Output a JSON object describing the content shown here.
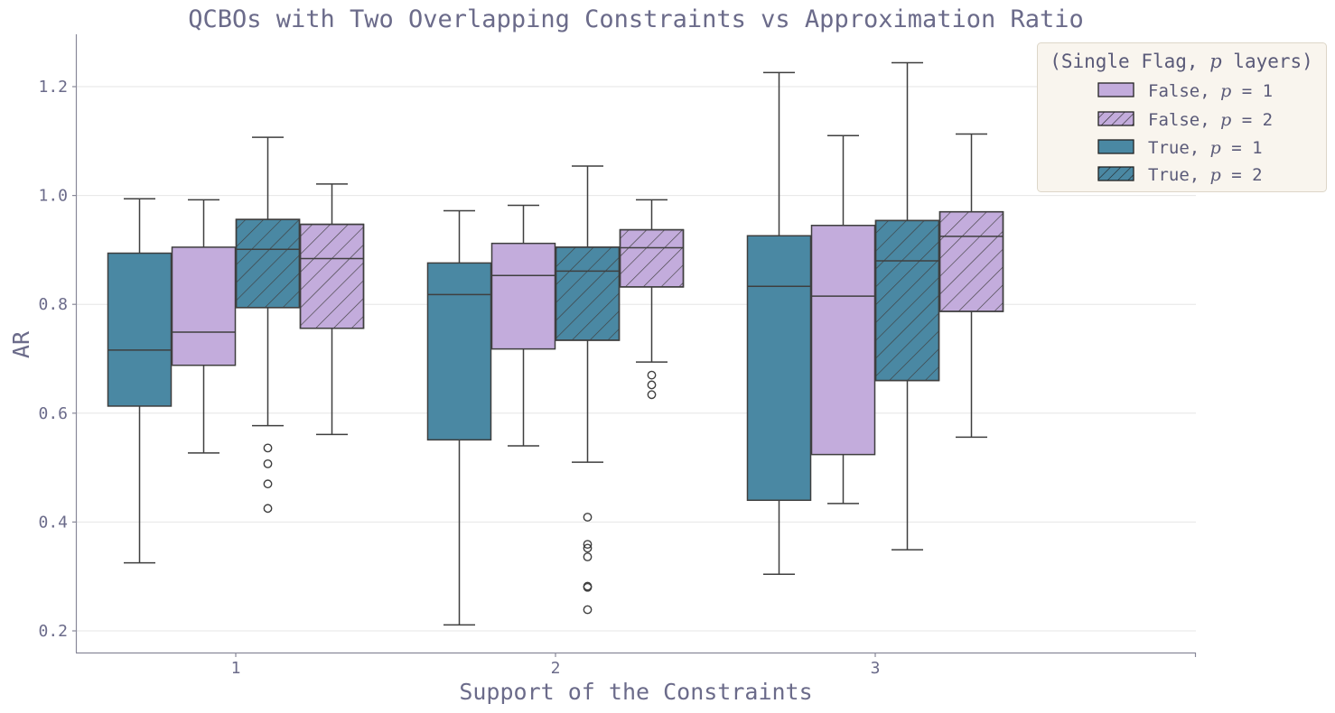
{
  "chart_data": {
    "type": "box",
    "title": "QCBOs with Two Overlapping Constraints vs Approximation Ratio",
    "xlabel": "Support of the Constraints",
    "ylabel": "AR",
    "categories": [
      "1",
      "2",
      "3"
    ],
    "yticks": [
      "0.2",
      "0.4",
      "0.6",
      "0.8",
      "1.0",
      "1.2"
    ],
    "ylim": [
      0.16,
      1.29
    ],
    "grid": "horizontal",
    "legend": {
      "title_prefix": "(Single Flag, ",
      "title_p": "p",
      "title_suffix": " layers)",
      "placement": "top-right",
      "entries": [
        {
          "prefix": "False, ",
          "p": "p",
          "suffix": " = 1"
        },
        {
          "prefix": "False, ",
          "p": "p",
          "suffix": " = 2"
        },
        {
          "prefix": "True, ",
          "p": "p",
          "suffix": " = 1"
        },
        {
          "prefix": "True, ",
          "p": "p",
          "suffix": " = 2"
        }
      ]
    },
    "colors": {
      "False": "#c3acdc",
      "True": "#4a88a3",
      "legend_bg": "#f9f5ee"
    },
    "series": [
      {
        "flag": "True",
        "p": 1,
        "hatch": false,
        "boxes": [
          {
            "whislo": 0.325,
            "q1": 0.613,
            "med": 0.716,
            "q3": 0.894,
            "whishi": 0.994,
            "fliers": []
          },
          {
            "whislo": 0.211,
            "q1": 0.551,
            "med": 0.818,
            "q3": 0.876,
            "whishi": 0.972,
            "fliers": []
          },
          {
            "whislo": 0.304,
            "q1": 0.44,
            "med": 0.833,
            "q3": 0.926,
            "whishi": 1.226,
            "fliers": []
          }
        ]
      },
      {
        "flag": "False",
        "p": 1,
        "hatch": false,
        "boxes": [
          {
            "whislo": 0.527,
            "q1": 0.688,
            "med": 0.749,
            "q3": 0.905,
            "whishi": 0.992,
            "fliers": []
          },
          {
            "whislo": 0.54,
            "q1": 0.718,
            "med": 0.853,
            "q3": 0.912,
            "whishi": 0.982,
            "fliers": []
          },
          {
            "whislo": 0.434,
            "q1": 0.524,
            "med": 0.815,
            "q3": 0.945,
            "whishi": 1.11,
            "fliers": []
          }
        ]
      },
      {
        "flag": "True",
        "p": 2,
        "hatch": true,
        "boxes": [
          {
            "whislo": 0.577,
            "q1": 0.794,
            "med": 0.901,
            "q3": 0.956,
            "whishi": 1.107,
            "fliers": [
              0.536,
              0.507,
              0.47,
              0.425
            ]
          },
          {
            "whislo": 0.51,
            "q1": 0.734,
            "med": 0.861,
            "q3": 0.905,
            "whishi": 1.054,
            "fliers": [
              0.409,
              0.359,
              0.352,
              0.336,
              0.282,
              0.28,
              0.239
            ]
          },
          {
            "whislo": 0.349,
            "q1": 0.66,
            "med": 0.88,
            "q3": 0.954,
            "whishi": 1.244,
            "fliers": []
          }
        ]
      },
      {
        "flag": "False",
        "p": 2,
        "hatch": true,
        "boxes": [
          {
            "whislo": 0.561,
            "q1": 0.756,
            "med": 0.884,
            "q3": 0.947,
            "whishi": 1.021,
            "fliers": []
          },
          {
            "whislo": 0.694,
            "q1": 0.832,
            "med": 0.904,
            "q3": 0.937,
            "whishi": 0.992,
            "fliers": [
              0.67,
              0.652,
              0.634
            ]
          },
          {
            "whislo": 0.556,
            "q1": 0.787,
            "med": 0.925,
            "q3": 0.97,
            "whishi": 1.113,
            "fliers": []
          }
        ]
      }
    ]
  }
}
